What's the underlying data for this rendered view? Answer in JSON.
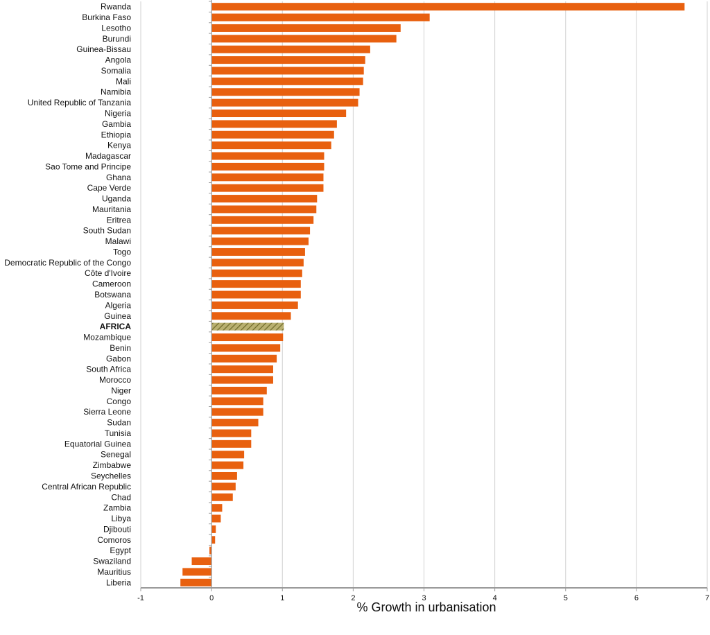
{
  "chart_data": {
    "type": "bar",
    "orientation": "horizontal",
    "title": "",
    "xlabel": "% Growth in urbanisation",
    "ylabel": "",
    "xlim": [
      -1,
      7
    ],
    "xticks": [
      "-1",
      "0",
      "1",
      "2",
      "3",
      "4",
      "5",
      "6",
      "7"
    ],
    "grid": "vertical",
    "legend": "none",
    "colors": {
      "bar": "#e8600f",
      "highlight": "#9a9040",
      "grid": "#d0d0d0",
      "axis": "#999999"
    },
    "highlight_category": "AFRICA",
    "categories": [
      "Rwanda",
      "Burkina Faso",
      "Lesotho",
      "Burundi",
      "Guinea-Bissau",
      "Angola",
      "Somalia",
      "Mali",
      "Namibia",
      "United Republic of Tanzania",
      "Nigeria",
      "Gambia",
      "Ethiopia",
      "Kenya",
      "Madagascar",
      "Sao Tome and Principe",
      "Ghana",
      "Cape Verde",
      "Uganda",
      "Mauritania",
      "Eritrea",
      "South Sudan",
      "Malawi",
      "Togo",
      "Democratic Republic of the Congo",
      "Côte d'Ivoire",
      "Cameroon",
      "Botswana",
      "Algeria",
      "Guinea",
      "AFRICA",
      "Mozambique",
      "Benin",
      "Gabon",
      "South Africa",
      "Morocco",
      "Niger",
      "Congo",
      "Sierra Leone",
      "Sudan",
      "Tunisia",
      "Equatorial Guinea",
      "Senegal",
      "Zimbabwe",
      "Seychelles",
      "Central African Republic",
      "Chad",
      "Zambia",
      "Libya",
      "Djibouti",
      "Comoros",
      "Egypt",
      "Swaziland",
      "Mauritius",
      "Liberia"
    ],
    "values": [
      6.68,
      3.08,
      2.67,
      2.61,
      2.24,
      2.17,
      2.15,
      2.14,
      2.09,
      2.07,
      1.9,
      1.77,
      1.73,
      1.69,
      1.59,
      1.59,
      1.58,
      1.58,
      1.49,
      1.48,
      1.44,
      1.39,
      1.37,
      1.32,
      1.3,
      1.28,
      1.26,
      1.26,
      1.22,
      1.12,
      1.02,
      1.01,
      0.97,
      0.92,
      0.87,
      0.87,
      0.78,
      0.73,
      0.73,
      0.66,
      0.56,
      0.56,
      0.46,
      0.45,
      0.36,
      0.34,
      0.3,
      0.15,
      0.13,
      0.06,
      0.05,
      -0.03,
      -0.28,
      -0.41,
      -0.44
    ]
  }
}
